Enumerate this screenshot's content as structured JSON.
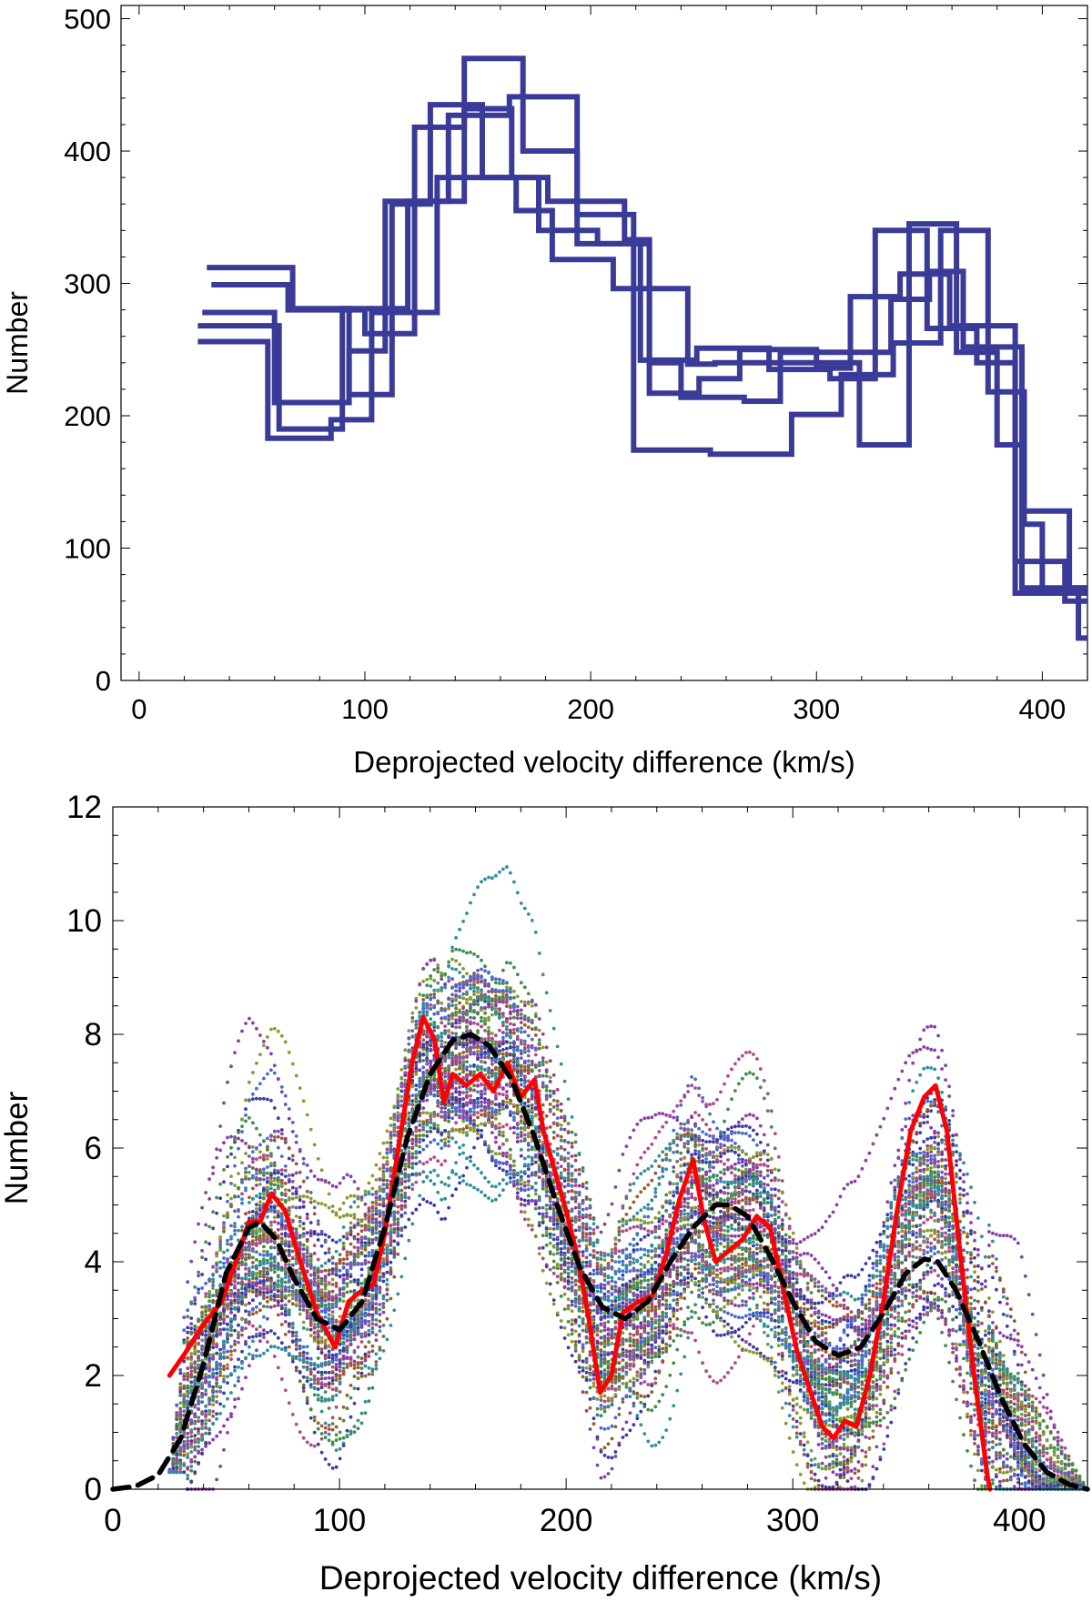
{
  "chart_data": [
    {
      "type": "line",
      "step": true,
      "xlabel": "Deprojected velocity difference (km/s)",
      "ylabel": "Number",
      "xlim": [
        -8,
        420
      ],
      "ylim": [
        0,
        510
      ],
      "x_ticks": [
        0,
        100,
        200,
        300,
        400
      ],
      "y_ticks": [
        0,
        100,
        200,
        300,
        400,
        500
      ],
      "color": "#3a3a98",
      "series": [
        {
          "points": [
            [
              26,
              256
            ],
            [
              57,
              256
            ],
            [
              57,
              183
            ],
            [
              85,
              183
            ],
            [
              85,
              197
            ],
            [
              103,
              197
            ],
            [
              103,
              278
            ],
            [
              132,
              278
            ],
            [
              132,
              380
            ],
            [
              167,
              380
            ],
            [
              167,
              355
            ],
            [
              183,
              355
            ],
            [
              183,
              318
            ],
            [
              210,
              318
            ],
            [
              210,
              296
            ],
            [
              243,
              296
            ],
            [
              243,
              239
            ],
            [
              255,
              239
            ],
            [
              255,
              240
            ],
            [
              319,
              240
            ],
            [
              319,
              178
            ],
            [
              341,
              178
            ],
            [
              341,
              345
            ],
            [
              362,
              345
            ],
            [
              362,
              248
            ],
            [
              380,
              248
            ],
            [
              380,
              178
            ],
            [
              392,
              178
            ],
            [
              392,
              118
            ],
            [
              400,
              118
            ],
            [
              400,
              66
            ],
            [
              420,
              66
            ]
          ]
        },
        {
          "points": [
            [
              26,
              268
            ],
            [
              62,
              268
            ],
            [
              62,
              190
            ],
            [
              90,
              190
            ],
            [
              90,
              281
            ],
            [
              119,
              281
            ],
            [
              119,
              362
            ],
            [
              144,
              362
            ],
            [
              144,
              432
            ],
            [
              165,
              432
            ],
            [
              165,
              380
            ],
            [
              177,
              380
            ],
            [
              177,
              340
            ],
            [
              203,
              340
            ],
            [
              203,
              330
            ],
            [
              226,
              330
            ],
            [
              226,
              240
            ],
            [
              240,
              240
            ],
            [
              240,
              214
            ],
            [
              268,
              214
            ],
            [
              268,
              211
            ],
            [
              284,
              211
            ],
            [
              284,
              248
            ],
            [
              333,
              248
            ],
            [
              333,
              288
            ],
            [
              350,
              288
            ],
            [
              350,
              309
            ],
            [
              365,
              309
            ],
            [
              365,
              252
            ],
            [
              391,
              252
            ],
            [
              391,
              70
            ],
            [
              420,
              70
            ]
          ]
        },
        {
          "points": [
            [
              30,
              312
            ],
            [
              68,
              312
            ],
            [
              68,
              281
            ],
            [
              93,
              281
            ],
            [
              93,
              216
            ],
            [
              112,
              216
            ],
            [
              112,
              360
            ],
            [
              129,
              360
            ],
            [
              129,
              435
            ],
            [
              152,
              435
            ],
            [
              152,
              380
            ],
            [
              181,
              380
            ],
            [
              181,
              362
            ],
            [
              215,
              362
            ],
            [
              215,
              333
            ],
            [
              226,
              333
            ],
            [
              226,
              217
            ],
            [
              248,
              217
            ],
            [
              248,
              228
            ],
            [
              266,
              228
            ],
            [
              266,
              250
            ],
            [
              300,
              250
            ],
            [
              300,
              236
            ],
            [
              315,
              236
            ],
            [
              315,
              290
            ],
            [
              337,
              290
            ],
            [
              337,
              307
            ],
            [
              359,
              307
            ],
            [
              359,
              268
            ],
            [
              388,
              268
            ],
            [
              388,
              66
            ],
            [
              416,
              66
            ],
            [
              416,
              32
            ],
            [
              420,
              32
            ]
          ]
        },
        {
          "points": [
            [
              32,
              299
            ],
            [
              66,
              299
            ],
            [
              66,
              280
            ],
            [
              100,
              280
            ],
            [
              100,
              262
            ],
            [
              122,
              262
            ],
            [
              122,
              418
            ],
            [
              144,
              418
            ],
            [
              144,
              470
            ],
            [
              170,
              470
            ],
            [
              170,
              400
            ],
            [
              194,
              400
            ],
            [
              194,
              352
            ],
            [
              219,
              352
            ],
            [
              219,
              174
            ],
            [
              253,
              174
            ],
            [
              253,
              171
            ],
            [
              289,
              171
            ],
            [
              289,
              201
            ],
            [
              311,
              201
            ],
            [
              311,
              231
            ],
            [
              334,
              231
            ],
            [
              334,
              255
            ],
            [
              355,
              255
            ],
            [
              355,
              340
            ],
            [
              376,
              340
            ],
            [
              376,
              218
            ],
            [
              392,
              218
            ],
            [
              392,
              128
            ],
            [
              412,
              128
            ],
            [
              412,
              70
            ],
            [
              420,
              70
            ]
          ]
        },
        {
          "points": [
            [
              28,
              278
            ],
            [
              60,
              278
            ],
            [
              60,
              210
            ],
            [
              93,
              210
            ],
            [
              93,
              249
            ],
            [
              109,
              249
            ],
            [
              109,
              362
            ],
            [
              137,
              362
            ],
            [
              137,
              427
            ],
            [
              164,
              427
            ],
            [
              164,
              441
            ],
            [
              194,
              441
            ],
            [
              194,
              330
            ],
            [
              222,
              330
            ],
            [
              222,
              242
            ],
            [
              247,
              242
            ],
            [
              247,
              251
            ],
            [
              279,
              251
            ],
            [
              279,
              235
            ],
            [
              306,
              235
            ],
            [
              306,
              228
            ],
            [
              326,
              228
            ],
            [
              326,
              340
            ],
            [
              349,
              340
            ],
            [
              349,
              266
            ],
            [
              371,
              266
            ],
            [
              371,
              240
            ],
            [
              388,
              240
            ],
            [
              388,
              90
            ],
            [
              410,
              90
            ],
            [
              410,
              60
            ],
            [
              420,
              60
            ]
          ]
        }
      ]
    },
    {
      "type": "scatter",
      "xlabel": "Deprojected velocity difference (km/s)",
      "ylabel": "Number",
      "xlim": [
        0,
        430
      ],
      "ylim": [
        0,
        12
      ],
      "x_ticks": [
        0,
        100,
        200,
        300,
        400
      ],
      "y_ticks": [
        0,
        2,
        4,
        6,
        8,
        10,
        12
      ],
      "dot_colors": [
        "#3b3ba8",
        "#8a3fa8",
        "#3f8f4a",
        "#2f8fa0",
        "#9a5a2a",
        "#8a9a30",
        "#b04a8a",
        "#4a6ad0"
      ],
      "scatter_realizations": 60,
      "scatter_x_range": [
        25,
        430
      ],
      "lines": [
        {
          "name": "",
          "color": "#ff0000",
          "style": "solid",
          "points": [
            [
              25,
              2.0
            ],
            [
              32,
              2.4
            ],
            [
              40,
              2.9
            ],
            [
              48,
              3.3
            ],
            [
              55,
              4.1
            ],
            [
              60,
              4.7
            ],
            [
              65,
              4.7
            ],
            [
              70,
              5.2
            ],
            [
              76,
              4.9
            ],
            [
              82,
              4.1
            ],
            [
              90,
              3.1
            ],
            [
              98,
              2.5
            ],
            [
              104,
              3.3
            ],
            [
              110,
              3.5
            ],
            [
              115,
              3.6
            ],
            [
              120,
              4.5
            ],
            [
              126,
              6.0
            ],
            [
              132,
              7.5
            ],
            [
              137,
              8.3
            ],
            [
              142,
              7.9
            ],
            [
              146,
              6.8
            ],
            [
              150,
              7.3
            ],
            [
              156,
              7.1
            ],
            [
              162,
              7.3
            ],
            [
              168,
              7.0
            ],
            [
              174,
              7.5
            ],
            [
              180,
              6.9
            ],
            [
              186,
              7.2
            ],
            [
              190,
              6.3
            ],
            [
              195,
              5.6
            ],
            [
              200,
              4.9
            ],
            [
              205,
              4.1
            ],
            [
              210,
              3.0
            ],
            [
              215,
              1.7
            ],
            [
              220,
              2.0
            ],
            [
              225,
              3.1
            ],
            [
              232,
              3.3
            ],
            [
              238,
              3.4
            ],
            [
              244,
              4.1
            ],
            [
              250,
              5.1
            ],
            [
              256,
              5.8
            ],
            [
              261,
              4.7
            ],
            [
              266,
              4.0
            ],
            [
              272,
              4.2
            ],
            [
              278,
              4.4
            ],
            [
              284,
              4.8
            ],
            [
              290,
              4.6
            ],
            [
              296,
              3.5
            ],
            [
              302,
              2.4
            ],
            [
              308,
              1.7
            ],
            [
              313,
              1.1
            ],
            [
              318,
              0.9
            ],
            [
              323,
              1.2
            ],
            [
              328,
              1.1
            ],
            [
              334,
              2.0
            ],
            [
              340,
              3.3
            ],
            [
              346,
              4.9
            ],
            [
              352,
              6.3
            ],
            [
              358,
              6.9
            ],
            [
              363,
              7.1
            ],
            [
              368,
              6.3
            ],
            [
              374,
              4.1
            ],
            [
              380,
              2.0
            ],
            [
              386,
              0.2
            ],
            [
              387,
              0
            ]
          ]
        },
        {
          "name": "",
          "color": "#000000",
          "style": "dashed",
          "points": [
            [
              0,
              0
            ],
            [
              10,
              0.05
            ],
            [
              20,
              0.25
            ],
            [
              30,
              0.9
            ],
            [
              40,
              2.2
            ],
            [
              50,
              3.8
            ],
            [
              60,
              4.6
            ],
            [
              65,
              4.7
            ],
            [
              72,
              4.4
            ],
            [
              80,
              3.7
            ],
            [
              90,
              3.0
            ],
            [
              100,
              2.8
            ],
            [
              110,
              3.3
            ],
            [
              120,
              4.6
            ],
            [
              130,
              6.2
            ],
            [
              140,
              7.3
            ],
            [
              150,
              7.9
            ],
            [
              158,
              8.0
            ],
            [
              166,
              7.8
            ],
            [
              176,
              7.2
            ],
            [
              186,
              6.2
            ],
            [
              196,
              5.0
            ],
            [
              206,
              3.9
            ],
            [
              216,
              3.2
            ],
            [
              226,
              3.0
            ],
            [
              236,
              3.3
            ],
            [
              246,
              4.0
            ],
            [
              256,
              4.6
            ],
            [
              266,
              5.0
            ],
            [
              272,
              5.0
            ],
            [
              280,
              4.8
            ],
            [
              290,
              4.1
            ],
            [
              300,
              3.3
            ],
            [
              310,
              2.6
            ],
            [
              320,
              2.35
            ],
            [
              330,
              2.5
            ],
            [
              340,
              3.1
            ],
            [
              350,
              3.8
            ],
            [
              358,
              4.05
            ],
            [
              364,
              4.0
            ],
            [
              372,
              3.5
            ],
            [
              382,
              2.6
            ],
            [
              392,
              1.6
            ],
            [
              402,
              0.8
            ],
            [
              412,
              0.3
            ],
            [
              422,
              0.08
            ],
            [
              430,
              0
            ]
          ]
        }
      ]
    }
  ]
}
